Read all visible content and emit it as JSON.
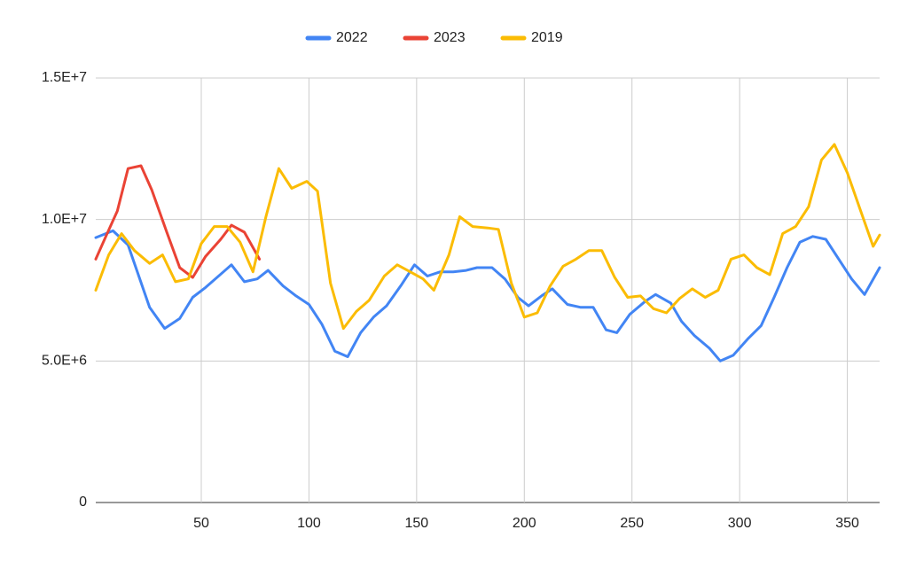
{
  "chart_data": {
    "type": "line",
    "xlim": [
      1,
      365
    ],
    "xticks": [
      50,
      100,
      150,
      200,
      250,
      300,
      350
    ],
    "ylim": [
      0,
      15000000
    ],
    "yticks": [
      0,
      {
        "value": 5000000,
        "label": "5.0E+6"
      },
      {
        "value": 10000000,
        "label": "1.0E+7"
      },
      {
        "value": 15000000,
        "label": "1.5E+7"
      }
    ],
    "grid": true,
    "legend": "top",
    "series": [
      {
        "name": "2022",
        "color": "#4285f4",
        "x": [
          1,
          9,
          16,
          26,
          33,
          40,
          46,
          52,
          64,
          70,
          76,
          81,
          88,
          94,
          100,
          106,
          112,
          118,
          124,
          130,
          136,
          143,
          149,
          155,
          161,
          167,
          173,
          178,
          185,
          191,
          197,
          202,
          208,
          213,
          220,
          226,
          232,
          238,
          243,
          249,
          256,
          261,
          268,
          273,
          279,
          286,
          291,
          297,
          304,
          310,
          316,
          322,
          328,
          334,
          340,
          346,
          352,
          358,
          365
        ],
        "values": [
          9360000,
          9600000,
          9100000,
          6900000,
          6150000,
          6500000,
          7250000,
          7600000,
          8400000,
          7800000,
          7900000,
          8200000,
          7650000,
          7300000,
          7000000,
          6300000,
          5350000,
          5150000,
          6000000,
          6550000,
          6950000,
          7700000,
          8400000,
          8000000,
          8150000,
          8150000,
          8200000,
          8300000,
          8300000,
          7900000,
          7250000,
          6950000,
          7300000,
          7550000,
          7000000,
          6900000,
          6900000,
          6100000,
          6000000,
          6650000,
          7100000,
          7350000,
          7050000,
          6400000,
          5900000,
          5450000,
          5000000,
          5200000,
          5800000,
          6250000,
          7250000,
          8300000,
          9200000,
          9400000,
          9300000,
          8600000,
          7900000,
          7350000,
          8300000
        ]
      },
      {
        "name": "2023",
        "color": "#ea4335",
        "x": [
          1,
          6,
          11,
          16,
          22,
          27,
          34,
          40,
          46,
          52,
          59,
          64,
          70,
          77
        ],
        "values": [
          8600000,
          9450000,
          10300000,
          11800000,
          11900000,
          11050000,
          9550000,
          8300000,
          7950000,
          8700000,
          9300000,
          9800000,
          9550000,
          8600000
        ]
      },
      {
        "name": "2019",
        "color": "#fbbc04",
        "x": [
          1,
          7,
          13,
          19,
          26,
          32,
          38,
          44,
          50,
          56,
          62,
          68,
          74,
          80,
          86,
          92,
          99,
          104,
          110,
          116,
          122,
          128,
          135,
          141,
          147,
          153,
          158,
          165,
          170,
          176,
          183,
          188,
          194,
          200,
          206,
          212,
          218,
          224,
          230,
          236,
          242,
          248,
          254,
          260,
          266,
          272,
          278,
          284,
          290,
          296,
          302,
          308,
          314,
          320,
          326,
          332,
          338,
          344,
          350,
          356,
          362,
          365
        ],
        "values": [
          7500000,
          8750000,
          9500000,
          8900000,
          8450000,
          8750000,
          7800000,
          7900000,
          9150000,
          9750000,
          9750000,
          9200000,
          8150000,
          10100000,
          11800000,
          11100000,
          11350000,
          11000000,
          7750000,
          6150000,
          6750000,
          7150000,
          8000000,
          8400000,
          8150000,
          7900000,
          7500000,
          8750000,
          10100000,
          9750000,
          9700000,
          9650000,
          7750000,
          6550000,
          6700000,
          7650000,
          8350000,
          8600000,
          8900000,
          8900000,
          7950000,
          7250000,
          7300000,
          6850000,
          6700000,
          7200000,
          7550000,
          7250000,
          7500000,
          8600000,
          8750000,
          8300000,
          8050000,
          9500000,
          9750000,
          10450000,
          12100000,
          12650000,
          11650000,
          10350000,
          9050000,
          9450000
        ]
      }
    ]
  }
}
